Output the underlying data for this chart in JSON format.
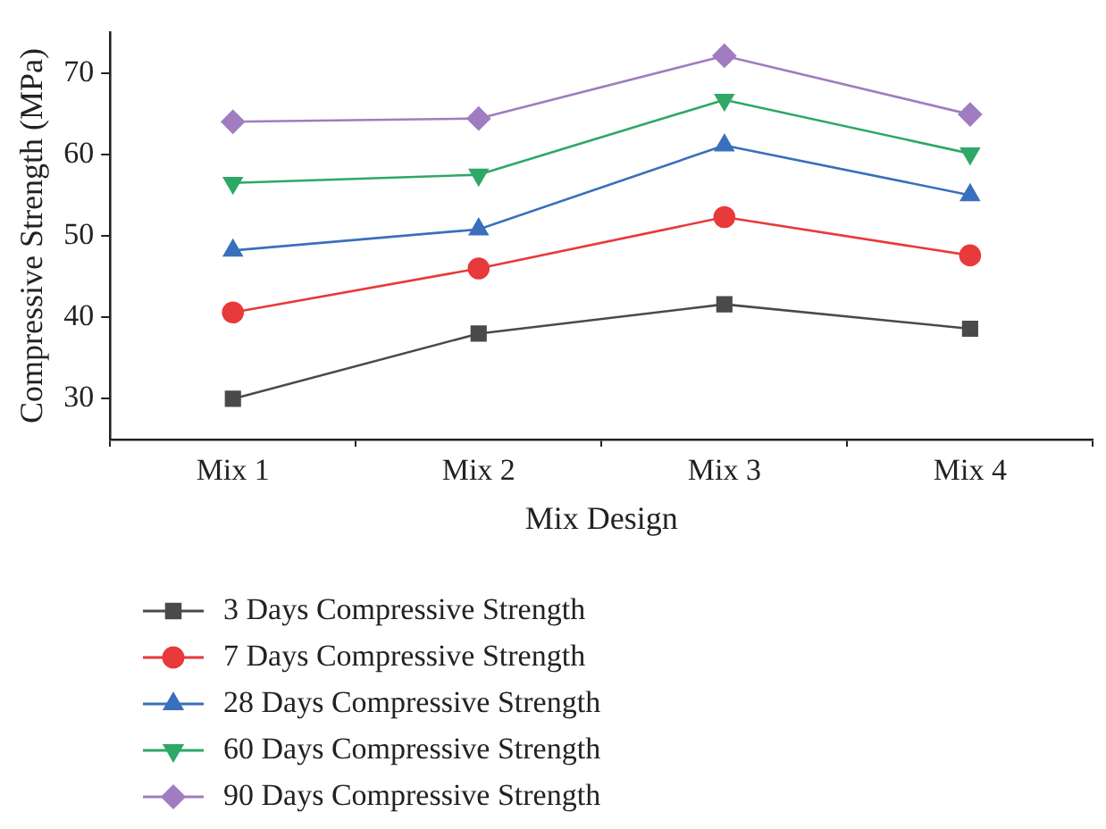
{
  "chart_data": {
    "type": "line",
    "xlabel": "Mix Design",
    "ylabel": "Compressive Strength (MPa)",
    "categories": [
      "Mix 1",
      "Mix 2",
      "Mix 3",
      "Mix 4"
    ],
    "ylim": [
      25,
      75
    ],
    "yticks": [
      30,
      40,
      50,
      60,
      70
    ],
    "grid": false,
    "legend": "bottom left",
    "line_style": "solid",
    "series": [
      {
        "name": "3 Days Compressive Strength",
        "color": "#4a4a4a",
        "marker": "square",
        "values": [
          30,
          38,
          41.6,
          38.6
        ]
      },
      {
        "name": "7 Days Compressive Strength",
        "color": "#e8393b",
        "marker": "circle",
        "values": [
          40.6,
          46,
          52.3,
          47.6
        ]
      },
      {
        "name": "28 Days Compressive Strength",
        "color": "#3a6fbd",
        "marker": "triangle",
        "values": [
          48.2,
          50.8,
          61.1,
          55
        ]
      },
      {
        "name": "60 Days Compressive Strength",
        "color": "#2ea866",
        "marker": "triangle-down",
        "values": [
          56.5,
          57.5,
          66.7,
          60.1
        ]
      },
      {
        "name": "90 Days Compressive Strength",
        "color": "#a07cc0",
        "marker": "diamond",
        "values": [
          64,
          64.4,
          72.1,
          64.9
        ]
      }
    ]
  }
}
